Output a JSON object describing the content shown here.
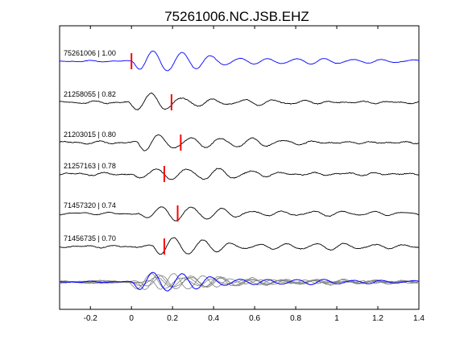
{
  "chart_data": {
    "type": "line",
    "title": "75261006.NC.JSB.EHZ",
    "xlabel": "",
    "ylabel": "",
    "xlim": [
      -0.35,
      1.4
    ],
    "xticks": [
      -0.2,
      0,
      0.2,
      0.4,
      0.6,
      0.8,
      1,
      1.2,
      1.4
    ],
    "xtick_labels": [
      "-0.2",
      "0",
      "0.2",
      "0.4",
      "0.6",
      "0.8",
      "1",
      "1.2",
      "1.4"
    ],
    "grid": false,
    "stack_note": "waveforms stacked vertically, one per row",
    "colors": {
      "reference": "#0000ff",
      "neighbor": "#000000",
      "pick": "#ff0000",
      "overlay": "#808080"
    },
    "traces": [
      {
        "id": "75261006",
        "cc": "1.00",
        "label": "75261006 | 1.00",
        "pick_time": 0.0,
        "color": "#0000ff",
        "onset": 0.0,
        "period": 0.14,
        "amp": 1.0,
        "noise": 0.08,
        "seed": 1
      },
      {
        "id": "21258055",
        "cc": "0.82",
        "label": "21258055 | 0.82",
        "pick_time": 0.195,
        "color": "#000000",
        "onset": -0.02,
        "period": 0.15,
        "amp": 0.85,
        "noise": 0.15,
        "seed": 2
      },
      {
        "id": "21203015",
        "cc": "0.80",
        "label": "21203015 | 0.80",
        "pick_time": 0.24,
        "color": "#000000",
        "onset": 0.02,
        "period": 0.15,
        "amp": 0.9,
        "noise": 0.15,
        "seed": 3
      },
      {
        "id": "21257163",
        "cc": "0.78",
        "label": "21257163 | 0.78",
        "pick_time": 0.16,
        "color": "#000000",
        "onset": 0.0,
        "period": 0.155,
        "amp": 0.95,
        "noise": 0.15,
        "seed": 4
      },
      {
        "id": "71457320",
        "cc": "0.74",
        "label": "71457320 | 0.74",
        "pick_time": 0.225,
        "color": "#000000",
        "onset": 0.03,
        "period": 0.15,
        "amp": 0.9,
        "noise": 0.12,
        "seed": 5
      },
      {
        "id": "71456735",
        "cc": "0.70",
        "label": "71456735 | 0.70",
        "pick_time": 0.16,
        "color": "#000000",
        "onset": 0.1,
        "period": 0.14,
        "amp": 0.85,
        "noise": 0.12,
        "seed": 6
      }
    ],
    "overlay": {
      "description": "aligned overlay of all traces",
      "ref_color": "#0000ff",
      "others_color": "#808080"
    }
  }
}
